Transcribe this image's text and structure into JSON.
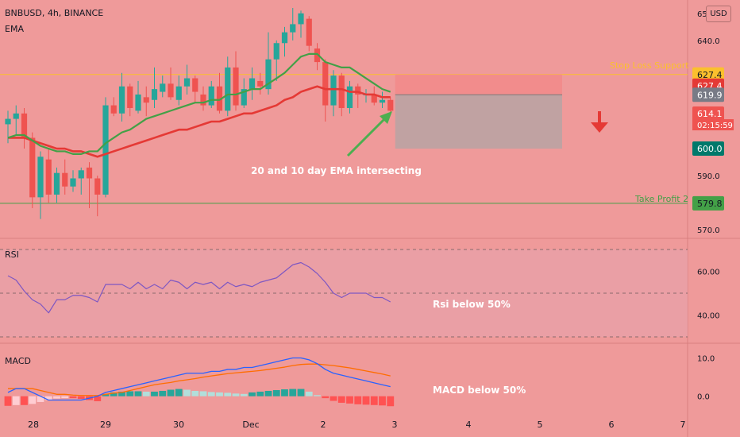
{
  "header": {
    "symbol_line": "BNBUSD, 4h, BINANCE",
    "indicator": "EMA",
    "currency_button": "USD"
  },
  "annotations": {
    "ema_note": "20 and 10 day EMA intersecting",
    "stop_loss_label": "Stop Loss Support",
    "take_profit_label": "Take Profit 2",
    "rsi_note": "Rsi below 50%",
    "macd_note": "MACD below 50%"
  },
  "colors": {
    "background": "#ef9a9a",
    "bull_candle": "#26a69a",
    "bear_candle": "#ef5350",
    "ema_fast": "#43a047",
    "ema_slow": "#e53935",
    "stop_line": "#fbc02d",
    "target_line": "#43a047",
    "rsi_line": "#7e57c2",
    "macd_line": "#2962ff",
    "signal_line": "#ff6d00",
    "arrow": "#e53935"
  },
  "chart_data": [
    {
      "type": "candlestick",
      "pane": "price",
      "title": "BNBUSD, 4h, BINANCE",
      "x_tick_labels": [
        "28",
        "29",
        "30",
        "Dec",
        "2",
        "3",
        "4",
        "5",
        "6",
        "7"
      ],
      "y_tick_labels": [
        "570.0",
        "590.0",
        "640.0",
        "65"
      ],
      "ylim": [
        568,
        652
      ],
      "ohlc": [
        [
          609,
          614,
          602,
          611
        ],
        [
          611,
          616,
          605,
          613
        ],
        [
          613,
          615,
          600,
          604
        ],
        [
          604,
          606,
          578,
          582
        ],
        [
          582,
          599,
          574,
          597
        ],
        [
          596,
          600,
          580,
          583
        ],
        [
          583,
          593,
          580,
          591
        ],
        [
          591,
          596,
          583,
          586
        ],
        [
          586,
          592,
          584,
          589
        ],
        [
          589,
          593,
          583,
          592
        ],
        [
          593,
          595,
          578,
          589
        ],
        [
          589,
          590,
          575,
          583
        ],
        [
          583,
          619,
          582,
          616
        ],
        [
          616,
          619,
          612,
          613
        ],
        [
          613,
          628,
          610,
          623
        ],
        [
          623,
          624,
          612,
          615
        ],
        [
          614,
          625,
          613,
          620
        ],
        [
          619,
          623,
          612,
          617
        ],
        [
          618,
          630,
          615,
          622
        ],
        [
          621,
          627,
          619,
          624
        ],
        [
          624,
          630,
          618,
          619
        ],
        [
          618,
          627,
          616,
          623
        ],
        [
          623,
          631,
          620,
          626
        ],
        [
          626,
          627,
          617,
          621
        ],
        [
          620,
          623,
          614,
          616
        ],
        [
          616,
          625,
          615,
          623
        ],
        [
          623,
          628,
          613,
          614
        ],
        [
          614,
          634,
          612,
          630
        ],
        [
          630,
          636,
          614,
          616
        ],
        [
          616,
          626,
          615,
          622
        ],
        [
          622,
          630,
          618,
          626
        ],
        [
          625,
          628,
          620,
          623
        ],
        [
          622,
          643,
          620,
          633
        ],
        [
          633,
          640,
          625,
          639
        ],
        [
          639,
          645,
          634,
          643
        ],
        [
          643,
          652,
          640,
          646
        ],
        [
          646,
          651,
          641,
          650
        ],
        [
          648,
          649,
          636,
          638
        ],
        [
          637,
          639,
          629,
          632
        ],
        [
          632,
          633,
          610,
          616
        ],
        [
          616,
          629,
          612,
          627
        ],
        [
          627,
          628,
          612,
          615
        ],
        [
          615,
          625,
          613,
          623
        ],
        [
          623,
          624,
          615,
          620
        ],
        [
          620,
          622,
          617,
          620
        ],
        [
          620,
          623,
          616,
          617
        ],
        [
          617,
          621,
          615,
          618
        ],
        [
          618,
          619,
          613,
          614
        ]
      ],
      "ema_fast": [
        604,
        605,
        605,
        603,
        601,
        600,
        599,
        599,
        598,
        598,
        599,
        599,
        602,
        604,
        606,
        607,
        609,
        611,
        612,
        613,
        614,
        615,
        616,
        617,
        617,
        618,
        618,
        620,
        620,
        621,
        622,
        622,
        624,
        626,
        628,
        631,
        634,
        635,
        635,
        632,
        631,
        630,
        630,
        628,
        626,
        624,
        622,
        621
      ],
      "ema_slow": [
        604,
        604,
        604,
        603,
        602,
        601,
        600,
        600,
        599,
        599,
        598,
        597,
        598,
        599,
        600,
        601,
        602,
        603,
        604,
        605,
        606,
        607,
        607,
        608,
        609,
        610,
        610,
        611,
        612,
        613,
        613,
        614,
        615,
        616,
        618,
        619,
        621,
        622,
        623,
        622,
        622,
        622,
        621,
        621,
        620,
        620,
        619,
        619
      ],
      "horizontal_levels": [
        {
          "label": "Stop Loss Support",
          "value": 627.4
        },
        {
          "label": "Take Profit 2",
          "value": 579.8
        }
      ],
      "price_badges": [
        "627.4",
        "627.4",
        "619.9",
        "614.1",
        "02:15:59",
        "600.0",
        "579.8"
      ],
      "position_box": {
        "stop": 627.4,
        "entry": 619.9,
        "target": 600.0
      }
    },
    {
      "type": "line",
      "pane": "rsi",
      "title": "RSI",
      "y_tick_labels": [
        "60.00",
        "40.00"
      ],
      "ylim": [
        30,
        70
      ],
      "band": [
        30,
        70
      ],
      "midline": 50,
      "values": [
        58,
        56,
        51,
        47,
        45,
        41,
        47,
        47,
        49,
        49,
        48,
        46,
        54,
        54,
        54,
        52,
        55,
        52,
        54,
        52,
        56,
        55,
        52,
        55,
        54,
        55,
        52,
        55,
        53,
        54,
        53,
        55,
        56,
        57,
        60,
        63,
        64,
        62,
        59,
        55,
        50,
        48,
        50,
        50,
        50,
        48,
        48,
        46
      ]
    },
    {
      "type": "bar",
      "pane": "macd",
      "title": "MACD",
      "y_tick_labels": [
        "10.0",
        "0.0"
      ],
      "ylim": [
        -4,
        13
      ],
      "histogram": [
        -2.5,
        -2.3,
        -2.3,
        -2.0,
        -1.5,
        -1.0,
        -0.6,
        -0.5,
        -0.5,
        -0.7,
        -1.0,
        -1.3,
        0.5,
        1.0,
        1.2,
        1.3,
        1.3,
        1.2,
        1.2,
        1.4,
        1.7,
        1.9,
        1.7,
        1.4,
        1.3,
        1.1,
        1.0,
        0.9,
        0.7,
        0.6,
        1.0,
        1.2,
        1.4,
        1.6,
        1.8,
        1.9,
        1.9,
        1.2,
        0.3,
        -0.5,
        -1.2,
        -1.7,
        -1.9,
        -2.1,
        -2.2,
        -2.3,
        -2.4,
        -2.6
      ],
      "macd": [
        1,
        2,
        2,
        1,
        0,
        -1,
        -1,
        -1,
        -1,
        -1,
        -0.5,
        0,
        1,
        1.5,
        2,
        2.5,
        3,
        3.5,
        4,
        4.5,
        5,
        5.5,
        6,
        6,
        6,
        6.5,
        6.5,
        7,
        7,
        7.5,
        7.5,
        8,
        8.5,
        9,
        9.5,
        10,
        10,
        9.5,
        8.5,
        7,
        6,
        5.5,
        5,
        4.5,
        4,
        3.5,
        3,
        2.5
      ],
      "signal": [
        2,
        2,
        2,
        2,
        1.5,
        1,
        0.5,
        0.5,
        0.3,
        0.2,
        0.2,
        0.2,
        0.5,
        0.8,
        1,
        1.5,
        2,
        2.5,
        3,
        3.3,
        3.6,
        4,
        4.3,
        4.6,
        5,
        5.3,
        5.6,
        5.9,
        6.1,
        6.3,
        6.5,
        6.7,
        7,
        7.3,
        7.6,
        8,
        8.3,
        8.4,
        8.4,
        8.2,
        8,
        7.7,
        7.4,
        7,
        6.6,
        6.2,
        5.8,
        5.3
      ]
    }
  ]
}
